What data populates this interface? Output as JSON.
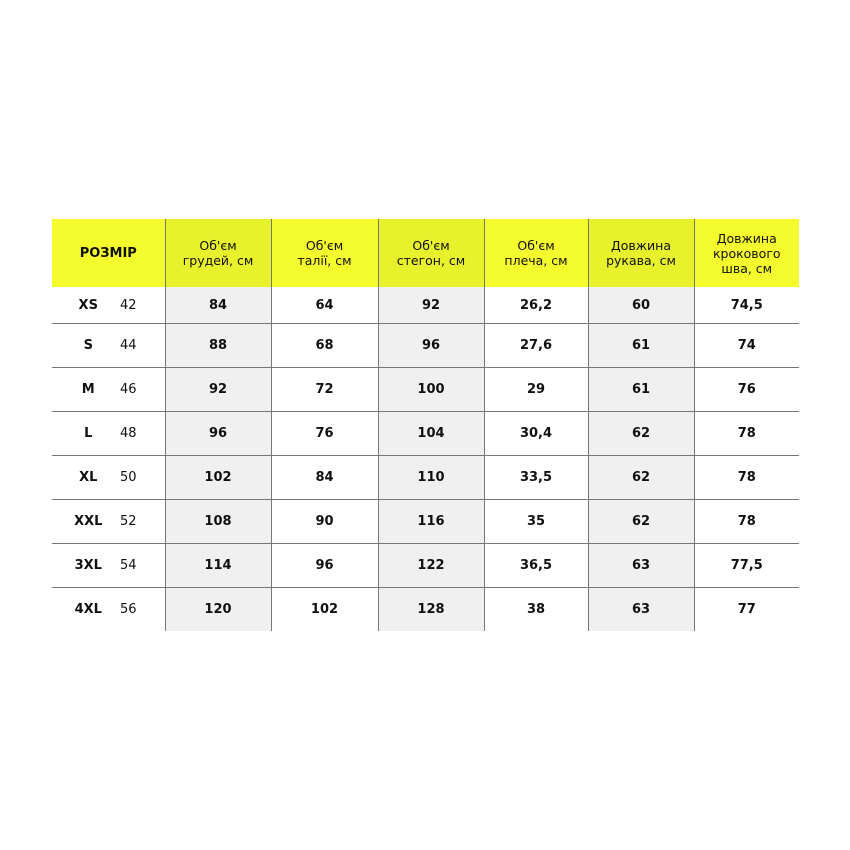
{
  "colors": {
    "header": "#f5fc2e",
    "header_shaded": "#e8f22c",
    "shaded": "#f0f0f0"
  },
  "headers": [
    "РОЗМІР",
    "Об'єм\nгрудей, см",
    "Об'єм\nталії, см",
    "Об'єм\nстегон, см",
    "Об'єм\nплеча, см",
    "Довжина\nрукава, см",
    "Довжина\nкрокового\nшва, см"
  ],
  "rows": [
    {
      "size": "XS",
      "num": "42",
      "values": [
        "84",
        "64",
        "92",
        "26,2",
        "60",
        "74,5"
      ]
    },
    {
      "size": "S",
      "num": "44",
      "values": [
        "88",
        "68",
        "96",
        "27,6",
        "61",
        "74"
      ]
    },
    {
      "size": "M",
      "num": "46",
      "values": [
        "92",
        "72",
        "100",
        "29",
        "61",
        "76"
      ]
    },
    {
      "size": "L",
      "num": "48",
      "values": [
        "96",
        "76",
        "104",
        "30,4",
        "62",
        "78"
      ]
    },
    {
      "size": "XL",
      "num": "50",
      "values": [
        "102",
        "84",
        "110",
        "33,5",
        "62",
        "78"
      ]
    },
    {
      "size": "XXL",
      "num": "52",
      "values": [
        "108",
        "90",
        "116",
        "35",
        "62",
        "78"
      ]
    },
    {
      "size": "3XL",
      "num": "54",
      "values": [
        "114",
        "96",
        "122",
        "36,5",
        "63",
        "77,5"
      ]
    },
    {
      "size": "4XL",
      "num": "56",
      "values": [
        "120",
        "102",
        "128",
        "38",
        "63",
        "77"
      ]
    }
  ]
}
